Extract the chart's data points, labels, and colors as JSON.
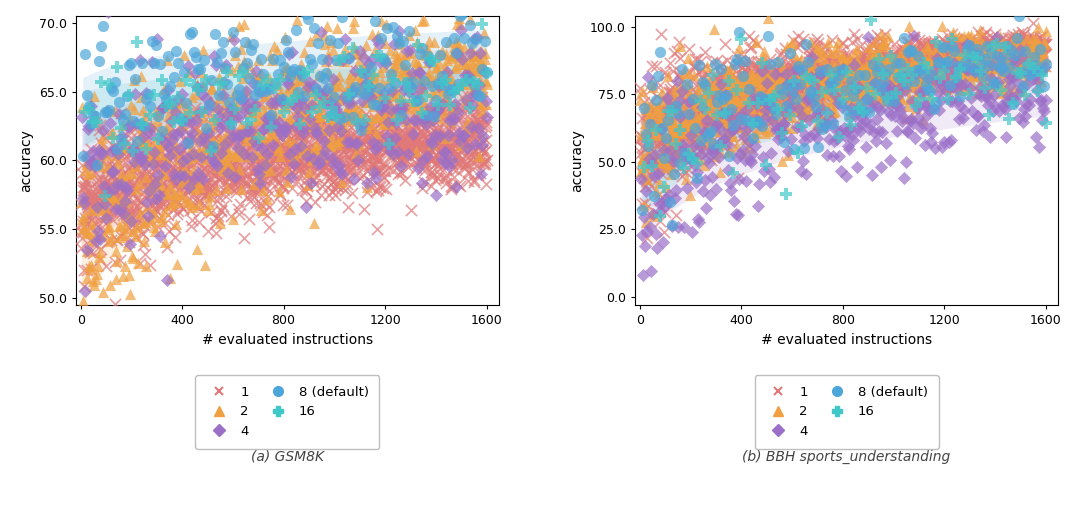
{
  "series": [
    {
      "label": "1",
      "color": "#e07878",
      "marker": "x",
      "ms": 6,
      "n_steps": 1600,
      "step": 1,
      "lw": 1.2
    },
    {
      "label": "2",
      "color": "#f0a040",
      "marker": "^",
      "ms": 6,
      "n_steps": 800,
      "step": 2,
      "lw": 0
    },
    {
      "label": "4",
      "color": "#9b6fc8",
      "marker": "D",
      "ms": 5,
      "n_steps": 400,
      "step": 4,
      "lw": 0
    },
    {
      "label": "8 (default)",
      "color": "#4da6d9",
      "marker": "o",
      "ms": 6,
      "n_steps": 200,
      "step": 8,
      "lw": 0
    },
    {
      "label": "16",
      "color": "#40c8c8",
      "marker": "P",
      "ms": 6,
      "n_steps": 100,
      "step": 16,
      "lw": 0
    }
  ],
  "gsm8k": {
    "title": "(a) GSM8K",
    "ylabel": "accuracy",
    "xlabel": "# evaluated instructions",
    "ylim": [
      49.5,
      70.5
    ],
    "yticks": [
      50.0,
      55.0,
      60.0,
      65.0,
      70.0
    ],
    "xlim": [
      -20,
      1650
    ],
    "xticks": [
      0,
      400,
      800,
      1200,
      1600
    ],
    "mean_start": [
      56.0,
      54.0,
      59.0,
      63.5,
      63.0
    ],
    "mean_end": [
      61.5,
      66.5,
      64.0,
      67.5,
      65.5
    ],
    "std_start": [
      2.5,
      5.0,
      4.0,
      2.5,
      2.0
    ],
    "std_end": [
      1.5,
      2.0,
      2.5,
      2.0,
      1.5
    ]
  },
  "bbh": {
    "title": "(b) BBH sports_understanding",
    "ylabel": "accuracy",
    "xlabel": "# evaluated instructions",
    "ylim": [
      -3,
      104
    ],
    "yticks": [
      0.0,
      25.0,
      50.0,
      75.0,
      100.0
    ],
    "xlim": [
      -20,
      1650
    ],
    "xticks": [
      0,
      400,
      800,
      1200,
      1600
    ],
    "mean_start": [
      55.0,
      55.0,
      38.0,
      52.0,
      50.0
    ],
    "mean_end": [
      92.0,
      88.0,
      75.0,
      88.0,
      83.0
    ],
    "std_start": [
      15.0,
      15.0,
      18.0,
      20.0,
      20.0
    ],
    "std_end": [
      3.0,
      5.0,
      8.0,
      5.0,
      7.0
    ]
  },
  "fig_width": 10.8,
  "fig_height": 5.26,
  "dpi": 100,
  "bg_color": "#ffffff",
  "scatter_alpha": 0.7,
  "shade_alpha": 0.15
}
